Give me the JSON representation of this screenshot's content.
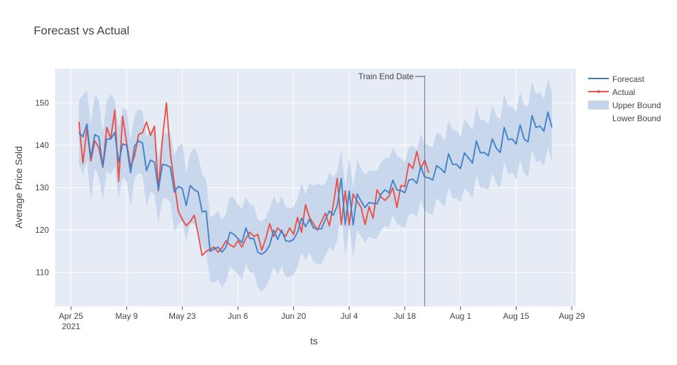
{
  "chart_data": {
    "type": "line",
    "title": "Forecast vs Actual",
    "xlabel": "ts",
    "ylabel": "Average Price Sold",
    "x_start": "2021-04-27",
    "x_end": "2021-08-25",
    "xlim": [
      "2021-04-21",
      "2021-08-30"
    ],
    "ylim": [
      102,
      158
    ],
    "y_ticks": [
      110,
      120,
      130,
      140,
      150
    ],
    "x_ticks": [
      {
        "date": "2021-04-25",
        "label": "Apr 25",
        "sublabel": "2021"
      },
      {
        "date": "2021-05-09",
        "label": "May 9",
        "sublabel": ""
      },
      {
        "date": "2021-05-23",
        "label": "May 23",
        "sublabel": ""
      },
      {
        "date": "2021-06-06",
        "label": "Jun 6",
        "sublabel": ""
      },
      {
        "date": "2021-06-20",
        "label": "Jun 20",
        "sublabel": ""
      },
      {
        "date": "2021-07-04",
        "label": "Jul 4",
        "sublabel": ""
      },
      {
        "date": "2021-07-18",
        "label": "Jul 18",
        "sublabel": ""
      },
      {
        "date": "2021-08-01",
        "label": "Aug 1",
        "sublabel": ""
      },
      {
        "date": "2021-08-15",
        "label": "Aug 15",
        "sublabel": ""
      },
      {
        "date": "2021-08-29",
        "label": "Aug 29",
        "sublabel": ""
      }
    ],
    "grid": true,
    "legend_position": "right",
    "annotation": {
      "text": "Train End Date",
      "date": "2021-07-23"
    },
    "colors": {
      "forecast": "#3f7fc6",
      "actual": "#e8534a",
      "band": "#c5d5ec",
      "plot_bg": "#e5ecf6",
      "grid": "#ffffff",
      "vline": "#6a7280"
    },
    "series": [
      {
        "name": "Forecast",
        "values": [
          143,
          142,
          145,
          137,
          142.5,
          142,
          135,
          141.5,
          141.5,
          143,
          136,
          140.3,
          140,
          133.5,
          139.8,
          141,
          140.5,
          134,
          136.5,
          136,
          129.5,
          135.5,
          135.3,
          134.8,
          129,
          130.3,
          129.8,
          125.8,
          130.5,
          129.5,
          129,
          124.3,
          124.5,
          115,
          115.5,
          116,
          114.8,
          116,
          119.5,
          119,
          118,
          117,
          120.5,
          118,
          118,
          114.8,
          114.3,
          115,
          116.5,
          120,
          117.8,
          120,
          117.5,
          117.3,
          117.8,
          119.5,
          122.8,
          120.8,
          122.5,
          120.5,
          120.3,
          120.3,
          122.5,
          124.5,
          123.5,
          125.8,
          132.2,
          121.3,
          129.2,
          121.2,
          128.5,
          126.8,
          125.3,
          126.5,
          126.3,
          126.2,
          128.5,
          129.5,
          128.8,
          131.8,
          129.5,
          129.3,
          128.8,
          131.8,
          132,
          131,
          135,
          132.5,
          132.3,
          131.8,
          135.2,
          134.5,
          133.5,
          138,
          135.5,
          135.5,
          134.5,
          138.2,
          137,
          135.8,
          141,
          138.2,
          138.3,
          137.5,
          141.5,
          139.3,
          138.3,
          144.2,
          141.3,
          141.5,
          140.3,
          144.8,
          141.5,
          140.8,
          147,
          144.2,
          144.5,
          143.3,
          147.8,
          144.2
        ]
      },
      {
        "name": "Actual",
        "values": [
          145.5,
          135.8,
          144,
          136.3,
          141,
          139.5,
          134.8,
          144.2,
          141.5,
          148.3,
          131.5,
          146.8,
          140.5,
          135,
          137.5,
          142.5,
          143,
          145.5,
          142.3,
          144.5,
          129.3,
          141.5,
          150,
          138,
          131,
          124.5,
          122.5,
          121,
          122,
          123.5,
          119,
          114,
          115,
          115.5,
          116,
          114.8,
          115.8,
          117.5,
          116.5,
          116,
          117.5,
          116,
          118,
          119.5,
          118.5,
          119,
          115.3,
          118,
          121.5,
          118.5,
          120.5,
          119.5,
          118.5,
          120.5,
          119,
          123,
          119.5,
          126,
          123,
          121.5,
          120,
          122,
          124,
          121,
          126,
          132.2,
          121.3,
          129.2,
          121.2,
          128.5,
          126.8,
          125.3,
          121.3,
          125.5,
          122.8,
          129.5,
          127.8,
          127,
          128,
          130,
          125.3,
          130.5,
          130.3,
          135.7,
          134.5,
          138.5,
          134.5,
          136.5,
          133.5
        ]
      },
      {
        "name": "Upper Bound",
        "values": [
          150.5,
          152,
          153,
          145,
          152,
          150.5,
          143,
          150.5,
          152,
          150.8,
          144,
          148.8,
          148.3,
          141.3,
          147,
          148.5,
          148,
          141.8,
          143.5,
          143.5,
          137,
          142.5,
          143,
          143,
          137.5,
          139.7,
          140.5,
          133.5,
          138,
          139.5,
          137.5,
          133,
          132,
          123,
          123.5,
          124.5,
          122.5,
          124,
          128,
          127.5,
          126,
          125,
          128,
          126,
          126,
          122.5,
          122,
          123,
          125,
          128,
          126,
          128,
          125.5,
          125,
          125.5,
          127.3,
          131,
          128.5,
          131,
          130.5,
          131,
          130.5,
          131,
          133.5,
          132.5,
          134,
          139,
          130,
          137,
          130,
          136.5,
          134.5,
          133,
          134,
          134,
          134,
          136,
          137,
          137,
          139.5,
          137.5,
          137,
          136,
          139.5,
          140,
          139,
          142.5,
          140.5,
          140,
          139.5,
          143,
          142.5,
          141,
          146,
          143.5,
          143.5,
          142,
          146,
          145,
          143.5,
          149,
          146,
          146,
          145,
          149.5,
          147,
          146,
          152,
          149,
          149,
          148,
          152.5,
          149.5,
          149,
          155,
          152,
          152.5,
          151,
          155.5,
          152.5
        ]
      },
      {
        "name": "Lower Bound",
        "values": [
          135.5,
          133,
          136.5,
          127,
          134.5,
          132.5,
          127,
          134,
          133,
          135,
          127.5,
          132.5,
          131.5,
          125.5,
          132,
          133.5,
          133,
          125.5,
          129,
          128.5,
          121.5,
          127.5,
          127.5,
          126.5,
          119.5,
          121.5,
          122,
          117.5,
          121.5,
          121.5,
          120,
          116,
          115,
          108,
          107.5,
          108.5,
          106.5,
          108,
          111.5,
          110.5,
          109.5,
          108.5,
          112,
          110,
          110,
          106.5,
          105.5,
          106.5,
          108.5,
          111.5,
          109.5,
          111.5,
          109,
          109,
          109.5,
          111.5,
          114.5,
          113,
          114.5,
          112.5,
          112,
          112,
          114,
          116,
          115,
          117.5,
          124.5,
          113.5,
          121,
          113.5,
          120,
          118.5,
          117,
          118.5,
          118,
          118,
          120,
          121,
          120.5,
          123.5,
          121.5,
          121,
          120.5,
          123.5,
          124,
          123,
          127,
          124.5,
          124,
          123.5,
          127.5,
          126.5,
          125.5,
          130,
          127.5,
          127.5,
          126.5,
          130,
          129,
          127.5,
          133,
          130,
          130,
          129.5,
          133.5,
          131,
          130,
          136,
          133,
          133.5,
          132,
          136.5,
          133.5,
          132.5,
          139,
          136,
          136.5,
          135,
          139.5,
          136
        ]
      }
    ]
  }
}
